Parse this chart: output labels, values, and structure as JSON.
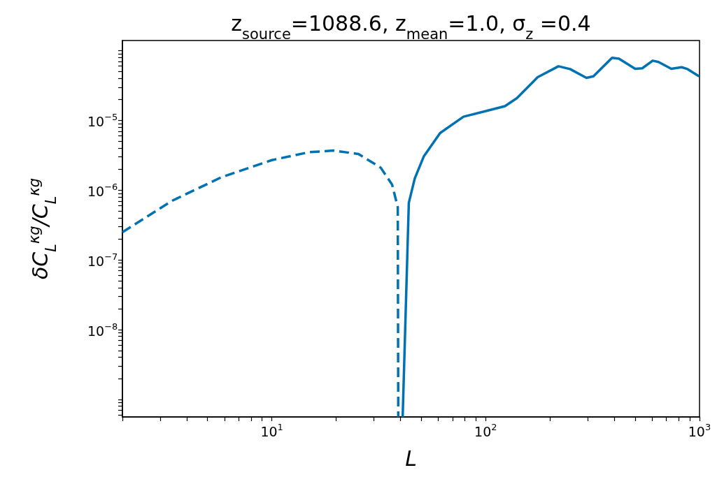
{
  "chart_data": {
    "type": "line",
    "title": "z$_{source}$=1088.6, z$_{mean}$=1.0, σ$_{z}$ =0.4",
    "xlabel": "L",
    "ylabel": "δC$_{L}$$^{κg}$/C$_{L}$$^{κg}$",
    "log": "xy",
    "xlim": [
      2,
      1000
    ],
    "ylim": [
      5.6e-10,
      0.00014
    ],
    "xticks": [
      {
        "value": 2,
        "label": null
      },
      {
        "value": 3,
        "label": null
      },
      {
        "value": 4,
        "label": null
      },
      {
        "value": 5,
        "label": null
      },
      {
        "value": 6,
        "label": null
      },
      {
        "value": 7,
        "label": null
      },
      {
        "value": 8,
        "label": null
      },
      {
        "value": 9,
        "label": null
      },
      {
        "value": 10,
        "label": "10$^{1}$"
      },
      {
        "value": 20,
        "label": null
      },
      {
        "value": 30,
        "label": null
      },
      {
        "value": 40,
        "label": null
      },
      {
        "value": 50,
        "label": null
      },
      {
        "value": 60,
        "label": null
      },
      {
        "value": 70,
        "label": null
      },
      {
        "value": 80,
        "label": null
      },
      {
        "value": 90,
        "label": null
      },
      {
        "value": 100,
        "label": "10$^{2}$"
      },
      {
        "value": 200,
        "label": null
      },
      {
        "value": 300,
        "label": null
      },
      {
        "value": 400,
        "label": null
      },
      {
        "value": 500,
        "label": null
      },
      {
        "value": 600,
        "label": null
      },
      {
        "value": 700,
        "label": null
      },
      {
        "value": 800,
        "label": null
      },
      {
        "value": 900,
        "label": null
      },
      {
        "value": 1000,
        "label": "10$^{3}$"
      }
    ],
    "yticks": [
      {
        "value": 6e-10,
        "label": null
      },
      {
        "value": 7e-10,
        "label": null
      },
      {
        "value": 8e-10,
        "label": null
      },
      {
        "value": 9e-10,
        "label": null
      },
      {
        "value": 1e-09,
        "label": null
      },
      {
        "value": 2e-09,
        "label": null
      },
      {
        "value": 3e-09,
        "label": null
      },
      {
        "value": 4e-09,
        "label": null
      },
      {
        "value": 5e-09,
        "label": null
      },
      {
        "value": 6e-09,
        "label": null
      },
      {
        "value": 7e-09,
        "label": null
      },
      {
        "value": 8e-09,
        "label": null
      },
      {
        "value": 9e-09,
        "label": null
      },
      {
        "value": 1e-08,
        "label": "10$^{−8}$"
      },
      {
        "value": 2e-08,
        "label": null
      },
      {
        "value": 3e-08,
        "label": null
      },
      {
        "value": 4e-08,
        "label": null
      },
      {
        "value": 5e-08,
        "label": null
      },
      {
        "value": 6e-08,
        "label": null
      },
      {
        "value": 7e-08,
        "label": null
      },
      {
        "value": 8e-08,
        "label": null
      },
      {
        "value": 9e-08,
        "label": null
      },
      {
        "value": 1e-07,
        "label": "10$^{−7}$"
      },
      {
        "value": 2e-07,
        "label": null
      },
      {
        "value": 3e-07,
        "label": null
      },
      {
        "value": 4e-07,
        "label": null
      },
      {
        "value": 5e-07,
        "label": null
      },
      {
        "value": 6e-07,
        "label": null
      },
      {
        "value": 7e-07,
        "label": null
      },
      {
        "value": 8e-07,
        "label": null
      },
      {
        "value": 9e-07,
        "label": null
      },
      {
        "value": 1e-06,
        "label": "10$^{−6}$"
      },
      {
        "value": 2e-06,
        "label": null
      },
      {
        "value": 3e-06,
        "label": null
      },
      {
        "value": 4e-06,
        "label": null
      },
      {
        "value": 5e-06,
        "label": null
      },
      {
        "value": 6e-06,
        "label": null
      },
      {
        "value": 7e-06,
        "label": null
      },
      {
        "value": 8e-06,
        "label": null
      },
      {
        "value": 9e-06,
        "label": null
      },
      {
        "value": 1e-05,
        "label": "10$^{−5}$"
      },
      {
        "value": 2e-05,
        "label": null
      },
      {
        "value": 3e-05,
        "label": null
      },
      {
        "value": 4e-05,
        "label": null
      },
      {
        "value": 5e-05,
        "label": null
      },
      {
        "value": 6e-05,
        "label": null
      },
      {
        "value": 7e-05,
        "label": null
      },
      {
        "value": 8e-05,
        "label": null
      },
      {
        "value": 9e-05,
        "label": null
      },
      {
        "value": 0.0001,
        "label": null
      }
    ],
    "series": [
      {
        "color": "#0072b2",
        "line_style": "dashed",
        "x": [
          2.0,
          3.4,
          5.8,
          10,
          14.9,
          19.4,
          25.4,
          32.3,
          36.5,
          38.8,
          39
        ],
        "values": [
          2.5e-07,
          7e-07,
          1.53e-06,
          2.7e-06,
          3.5e-06,
          3.7e-06,
          3.3e-06,
          2.1e-06,
          1.2e-06,
          5.7e-07,
          5.6e-10
        ]
      },
      {
        "color": "#0072b2",
        "line_style": "solid",
        "x": [
          40.9,
          43.7,
          46.6,
          51.4,
          61.2,
          78.7,
          101,
          123,
          140,
          175,
          219,
          248,
          296,
          319,
          390,
          420,
          500,
          540,
          604,
          643,
          738,
          825,
          879,
          995
        ],
        "values": [
          5.6e-10,
          6.6e-07,
          1.48e-06,
          3.07e-06,
          6.6e-06,
          1.13e-05,
          1.37e-05,
          1.6e-05,
          2.09e-05,
          4.17e-05,
          5.98e-05,
          5.45e-05,
          4.07e-05,
          4.3e-05,
          7.9e-05,
          7.7e-05,
          5.5e-05,
          5.6e-05,
          7.2e-05,
          6.9e-05,
          5.5e-05,
          5.8e-05,
          5.45e-05,
          4.3e-05
        ]
      }
    ]
  }
}
